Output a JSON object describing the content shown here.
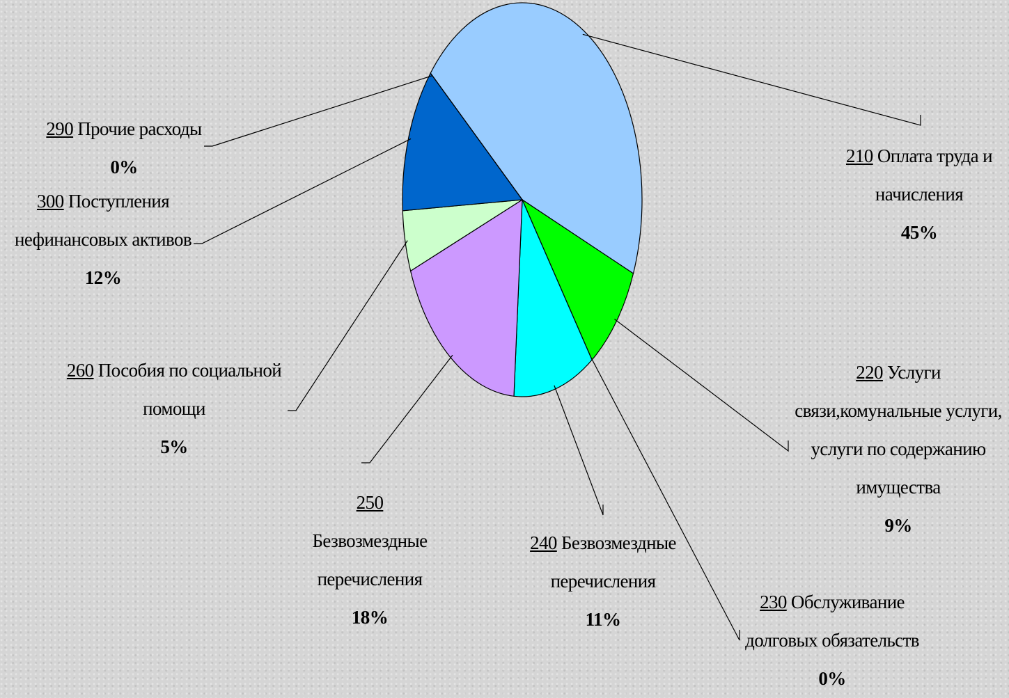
{
  "chart_data": {
    "type": "pie",
    "categories": [
      "Оплата труда и начисления",
      "Услуги связи,комунальные услуги, услуги по содержанию имущества",
      "Обслуживание долговых обязательств",
      "Безвозмездные перечисления",
      "Безвозмездные перечисления",
      "Пособия по социальной помощи",
      "Поступления нефинансовых активов",
      "Прочие расходы"
    ],
    "codes": [
      "210",
      "220",
      "230",
      "240",
      "250",
      "260",
      "300",
      "290"
    ],
    "values": [
      45,
      9,
      0,
      11,
      18,
      5,
      12,
      0
    ],
    "value_labels": [
      "45%",
      "9%",
      "0%",
      "11%",
      "18%",
      "5%",
      "12%",
      "0%"
    ],
    "colors": [
      "#99ccff",
      "#00ff00",
      "#993366",
      "#00ffff",
      "#cc99ff",
      "#ccffcc",
      "#0066cc",
      "#333399"
    ]
  }
}
